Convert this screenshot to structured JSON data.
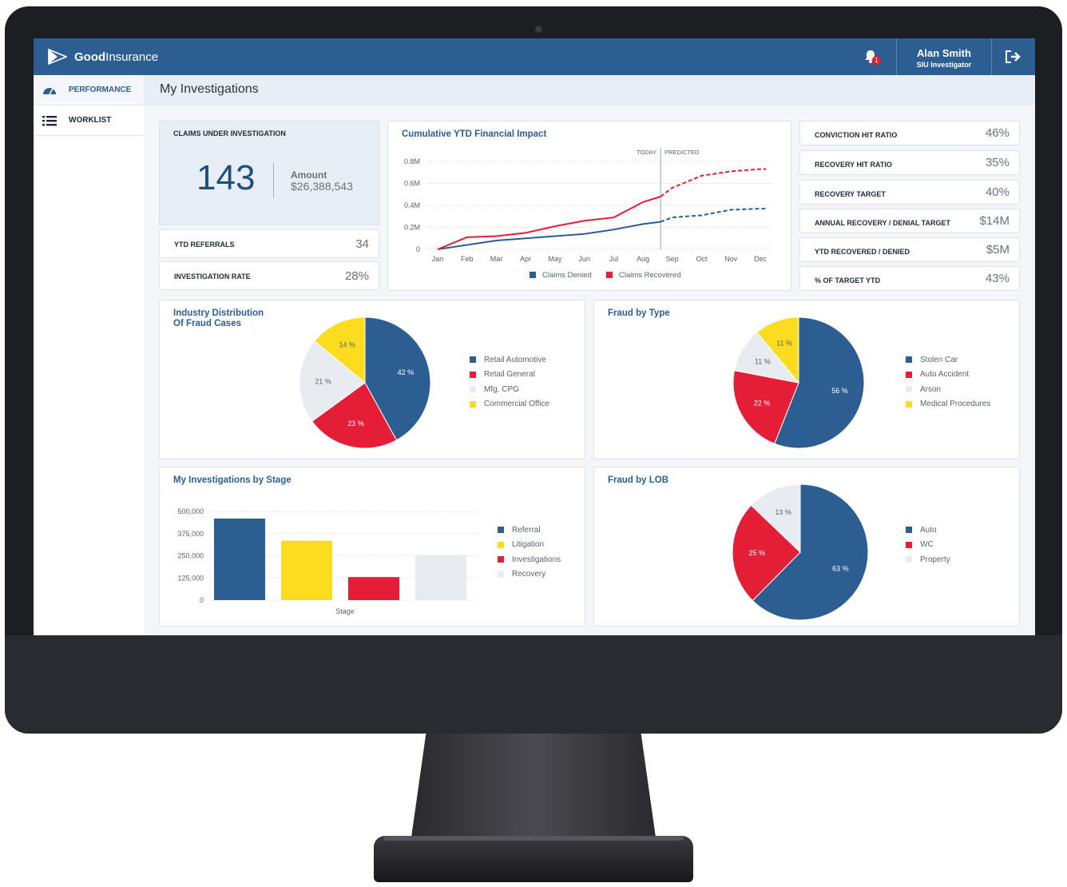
{
  "app": {
    "brand_bold": "Good",
    "brand_rest": "Insurance",
    "notification_count": "1"
  },
  "user": {
    "name": "Alan Smith",
    "role": "SIU Investigator"
  },
  "sidebar": {
    "items": [
      {
        "label": "PERFORMANCE",
        "icon": "gauge-icon"
      },
      {
        "label": "WORKLIST",
        "icon": "list-icon"
      }
    ]
  },
  "page": {
    "title": "My Investigations"
  },
  "claims": {
    "label": "CLAIMS UNDER INVESTIGATION",
    "count": "143",
    "amount_label": "Amount",
    "amount": "$26,388,543"
  },
  "left_kpis": [
    {
      "label": "YTD REFERRALS",
      "value": "34"
    },
    {
      "label": "INVESTIGATION RATE",
      "value": "28%"
    }
  ],
  "right_kpis": [
    {
      "label": "CONVICTION HIT RATIO",
      "value": "46%"
    },
    {
      "label": "RECOVERY HIT RATIO",
      "value": "35%"
    },
    {
      "label": "RECOVERY TARGET",
      "value": "40%"
    },
    {
      "label": "ANNUAL RECOVERY / DENIAL TARGET",
      "value": "$14M"
    },
    {
      "label": "YTD RECOVERED / DENIED",
      "value": "$5M"
    },
    {
      "label": "% OF TARGET YTD",
      "value": "43%"
    }
  ],
  "colors": {
    "blue": "#2d5e92",
    "red": "#e41e36",
    "yellow": "#fcdc1e",
    "light": "#e8ecf1"
  },
  "chart_data": [
    {
      "type": "line",
      "title": "Cumulative YTD Financial Impact",
      "categories": [
        "Jan",
        "Feb",
        "Mar",
        "Apr",
        "May",
        "Jun",
        "Jul",
        "Aug",
        "Sep",
        "Oct",
        "Nov",
        "Dec"
      ],
      "yticks": [
        "0",
        "0.2M",
        "0.4M",
        "0.6M",
        "0.8M"
      ],
      "ylim": [
        0,
        0.8
      ],
      "today_label": "TODAY",
      "predicted_label": "PREDICTED",
      "today_index": 7.6,
      "series": [
        {
          "name": "Claims Denied",
          "color": "#2d5e92",
          "x": [
            0,
            1,
            2,
            3,
            4,
            5,
            6,
            7,
            7.6,
            8,
            9,
            10,
            11,
            11.2
          ],
          "values": [
            0,
            0.04,
            0.08,
            0.1,
            0.12,
            0.14,
            0.18,
            0.23,
            0.25,
            0.29,
            0.31,
            0.36,
            0.37,
            0.37
          ]
        },
        {
          "name": "Claims Recovered",
          "color": "#e41e36",
          "x": [
            0,
            1,
            2,
            3,
            4,
            5,
            6,
            7,
            7.6,
            8,
            9,
            10,
            11,
            11.2
          ],
          "values": [
            0,
            0.11,
            0.12,
            0.15,
            0.21,
            0.26,
            0.29,
            0.43,
            0.48,
            0.56,
            0.67,
            0.71,
            0.73,
            0.73
          ]
        }
      ]
    },
    {
      "type": "pie",
      "title": "Industry Distribution\nOf Fraud Cases",
      "slices": [
        {
          "label": "Retail Automotive",
          "value": 42,
          "color": "#2d5e92"
        },
        {
          "label": "Retail General",
          "value": 23,
          "color": "#e41e36"
        },
        {
          "label": "Mfg. CPG",
          "value": 21,
          "color": "#e8ecf1"
        },
        {
          "label": "Commercial Office",
          "value": 14,
          "color": "#fcdc1e"
        }
      ]
    },
    {
      "type": "pie",
      "title": "Fraud by Type",
      "slices": [
        {
          "label": "Stolen Car",
          "value": 56,
          "color": "#2d5e92"
        },
        {
          "label": "Auto Accident",
          "value": 22,
          "color": "#e41e36"
        },
        {
          "label": "Arson",
          "value": 11,
          "color": "#e8ecf1"
        },
        {
          "label": "Medical Procedures",
          "value": 11,
          "color": "#fcdc1e"
        }
      ]
    },
    {
      "type": "bar",
      "title": "My Investigations by Stage",
      "xlabel": "Stage",
      "yticks": [
        "0",
        "125,000",
        "250,000",
        "375,000",
        "500,000"
      ],
      "ylim": [
        0,
        500000
      ],
      "categories": [
        "Referral",
        "Litigation",
        "Investigations",
        "Recovery"
      ],
      "values": [
        460000,
        335000,
        130000,
        255000
      ],
      "colors": [
        "#2d5e92",
        "#fcdc1e",
        "#e41e36",
        "#e8ecf1"
      ]
    },
    {
      "type": "pie",
      "title": "Fraud by LOB",
      "slices": [
        {
          "label": "Auto",
          "value": 63,
          "color": "#2d5e92"
        },
        {
          "label": "WC",
          "value": 25,
          "color": "#e41e36"
        },
        {
          "label": "Property",
          "value": 13,
          "color": "#e8ecf1"
        }
      ]
    }
  ]
}
